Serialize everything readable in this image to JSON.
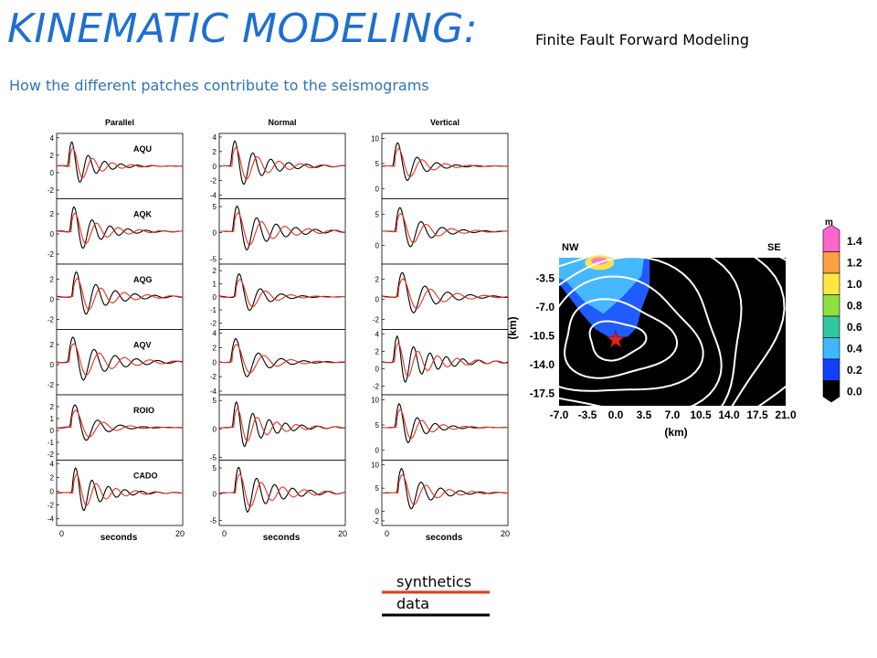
{
  "slide": {
    "title": "KINEMATIC MODELING:",
    "subtitle": "Finite Fault Forward Modeling",
    "explanation": "How the different patches contribute to the seismograms"
  },
  "colors": {
    "title": "#1f6fd1",
    "synthetics": "#e8321e",
    "data": "#000000"
  },
  "chart_data": [
    {
      "type": "line",
      "title": "",
      "xlabel": "seconds",
      "ylabel": "",
      "x_tick_labels": [
        "0",
        "20"
      ],
      "xlim": [
        0,
        20
      ],
      "columns": [
        {
          "name": "Parallel",
          "panels": [
            {
              "station": "AQU",
              "y_ticks": [
                "4",
                "2",
                "0",
                "-2"
              ],
              "ylim": [
                -3,
                4.5
              ]
            },
            {
              "station": "AQK",
              "y_ticks": [
                "2",
                "0",
                "-2"
              ],
              "ylim": [
                -3,
                3.5
              ]
            },
            {
              "station": "AQG",
              "y_ticks": [
                "2",
                "0",
                "-2"
              ],
              "ylim": [
                -3,
                3.5
              ]
            },
            {
              "station": "AQV",
              "y_ticks": [
                "2",
                "0",
                "-2"
              ],
              "ylim": [
                -3,
                3.5
              ]
            },
            {
              "station": "ROIO",
              "y_ticks": [
                "2",
                "1",
                "0",
                "-1",
                "-2"
              ],
              "ylim": [
                -2.5,
                3
              ]
            },
            {
              "station": "CADO",
              "y_ticks": [
                "4",
                "2",
                "0",
                "-2",
                "-4"
              ],
              "ylim": [
                -5,
                4.5
              ]
            }
          ]
        },
        {
          "name": "Normal",
          "panels": [
            {
              "station": "",
              "y_ticks": [
                "4",
                "2",
                "0",
                "-2",
                "-4"
              ],
              "ylim": [
                -4.5,
                4.5
              ]
            },
            {
              "station": "",
              "y_ticks": [
                "5",
                "0",
                "-5"
              ],
              "ylim": [
                -6,
                6.5
              ]
            },
            {
              "station": "",
              "y_ticks": [
                "2",
                "1",
                "0",
                "-1",
                "-2"
              ],
              "ylim": [
                -2.5,
                2.5
              ]
            },
            {
              "station": "",
              "y_ticks": [
                "4",
                "2",
                "0",
                "-2",
                "-4"
              ],
              "ylim": [
                -4.5,
                4.5
              ]
            },
            {
              "station": "",
              "y_ticks": [
                "5",
                "0",
                "-5"
              ],
              "ylim": [
                -5.5,
                6
              ]
            },
            {
              "station": "",
              "y_ticks": [
                "5",
                "0",
                "-5"
              ],
              "ylim": [
                -6,
                6.5
              ]
            }
          ]
        },
        {
          "name": "Vertical",
          "panels": [
            {
              "station": "",
              "y_ticks": [
                "10",
                "5",
                "0"
              ],
              "ylim": [
                -2,
                11
              ]
            },
            {
              "station": "",
              "y_ticks": [
                "5",
                "0"
              ],
              "ylim": [
                -3,
                7.5
              ]
            },
            {
              "station": "",
              "y_ticks": [
                "2",
                "0",
                "-2"
              ],
              "ylim": [
                -3,
                3.5
              ]
            },
            {
              "station": "",
              "y_ticks": [
                "4",
                "2",
                "0",
                "-2"
              ],
              "ylim": [
                -3,
                4.5
              ]
            },
            {
              "station": "",
              "y_ticks": [
                "10",
                "5",
                "0"
              ],
              "ylim": [
                -2,
                11
              ]
            },
            {
              "station": "",
              "y_ticks": [
                "10",
                "5",
                "0",
                "-2"
              ],
              "ylim": [
                -3,
                11
              ]
            }
          ]
        }
      ],
      "legend": [
        {
          "label": "synthetics",
          "color": "#e8321e"
        },
        {
          "label": "data",
          "color": "#000000"
        }
      ]
    },
    {
      "type": "heatmap",
      "title": "",
      "corner_labels": [
        "NW",
        "SE"
      ],
      "xlabel": "(km)",
      "ylabel": "(km)",
      "x_ticks": [
        "-7.0",
        "-3.5",
        "0.0",
        "3.5",
        "7.0",
        "10.5",
        "14.0",
        "17.5",
        "21.0"
      ],
      "y_ticks": [
        "-3.5",
        "-7.0",
        "-10.5",
        "-14.0",
        "-17.5"
      ],
      "xlim": [
        -7,
        21
      ],
      "ylim": [
        -19,
        -1
      ],
      "hypocenter": {
        "x": 0.0,
        "y": -11.0
      },
      "colorbar": {
        "unit": "m",
        "ticks": [
          "1.4",
          "1.2",
          "1.0",
          "0.8",
          "0.6",
          "0.4",
          "0.2",
          "0.0"
        ],
        "colors": [
          "#ff66cc",
          "#ffa040",
          "#ffe640",
          "#90e040",
          "#30c8a0",
          "#40b8ff",
          "#1040ff",
          "#000000"
        ]
      }
    }
  ],
  "legend_labels": {
    "synthetics": "synthetics",
    "data": "data"
  }
}
